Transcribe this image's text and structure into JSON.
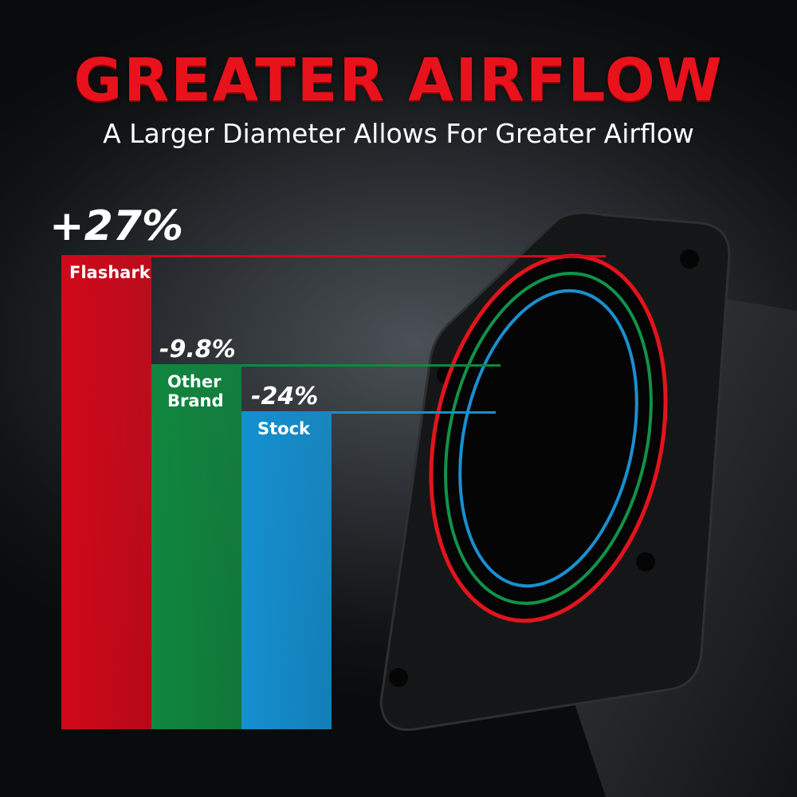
{
  "header": {
    "title": "GREATER AIRFLOW",
    "subtitle": "A Larger Diameter Allows For Greater Airflow"
  },
  "chart_data": {
    "type": "bar",
    "categories": [
      "Flashark",
      "Other Brand",
      "Stock"
    ],
    "values": [
      100,
      77,
      67
    ],
    "annotations": [
      "+27%",
      "-9.8%",
      "-24%"
    ],
    "colors": [
      "#d0091a",
      "#10873f",
      "#1490d0"
    ],
    "title": "",
    "xlabel": "",
    "ylabel": ""
  }
}
